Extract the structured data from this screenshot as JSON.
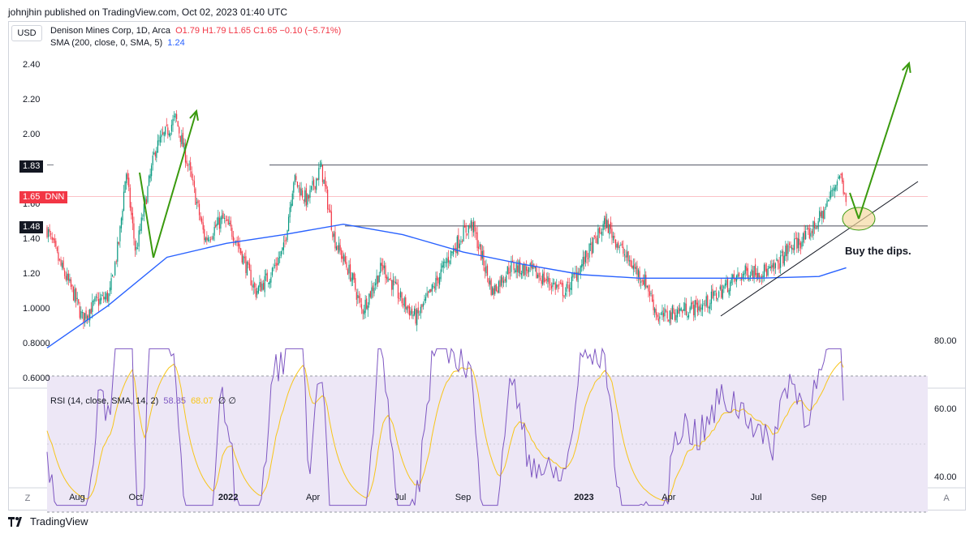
{
  "header": {
    "published": "johnjhin published on TradingView.com, Oct 02, 2023 01:40 UTC",
    "currency_button": "USD",
    "symbol_line": "Denison Mines Corp, 1D, Arca",
    "ohlc": "O1.79 H1.79 L1.65 C1.65 −0.10 (−5.71%)",
    "sma_label": "SMA (200, close, 0, SMA, 5)",
    "sma_value": "1.24",
    "rsi_label": "RSI (14, close, SMA, 14, 2)",
    "rsi_value": "58.85",
    "rsi_sma_value": "68.07",
    "rsi_extra": "∅  ∅"
  },
  "price_axis": {
    "ticks": [
      "2.40",
      "2.20",
      "2.00",
      "1.80",
      "1.60",
      "1.40",
      "1.20",
      "1.0000",
      "0.8000",
      "0.6000"
    ],
    "tag_high": "1.83",
    "tag_last": "1.65",
    "tag_symbol": "DNN",
    "tag_low": "1.48"
  },
  "rsi_axis": {
    "ticks": [
      "80.00",
      "60.00",
      "40.00"
    ]
  },
  "time_axis": {
    "labels": [
      "Aug",
      "Oct",
      "2022",
      "Apr",
      "Jul",
      "Sep",
      "2023",
      "Apr",
      "Jul",
      "Sep"
    ],
    "bold": [
      false,
      false,
      true,
      false,
      false,
      false,
      true,
      false,
      false,
      false
    ]
  },
  "corner_left": "Z",
  "corner_right": "A",
  "annotation": "Buy the dips.",
  "brand": "TradingView",
  "colors": {
    "up": "#089981",
    "down": "#f23645",
    "sma": "#2962ff",
    "rsi": "#7e57c2",
    "rsi_sma": "#f7c51a",
    "arrow": "#3a9a0e",
    "band": "#ede7f6"
  },
  "chart_data": {
    "type": "candlestick",
    "symbol": "DNN",
    "interval": "1D",
    "price_range": [
      0.56,
      2.5
    ],
    "close_path": [
      {
        "x": "2021-07-01",
        "y": 1.46
      },
      {
        "x": "2021-07-15",
        "y": 1.25
      },
      {
        "x": "2021-07-29",
        "y": 1.08
      },
      {
        "x": "2021-08-06",
        "y": 0.95
      },
      {
        "x": "2021-08-20",
        "y": 1.04
      },
      {
        "x": "2021-09-03",
        "y": 1.08
      },
      {
        "x": "2021-09-13",
        "y": 1.4
      },
      {
        "x": "2021-09-20",
        "y": 1.8
      },
      {
        "x": "2021-09-30",
        "y": 1.32
      },
      {
        "x": "2021-10-20",
        "y": 1.92
      },
      {
        "x": "2021-11-10",
        "y": 2.1
      },
      {
        "x": "2021-11-24",
        "y": 1.8
      },
      {
        "x": "2021-12-10",
        "y": 1.4
      },
      {
        "x": "2021-12-28",
        "y": 1.52
      },
      {
        "x": "2022-01-10",
        "y": 1.42
      },
      {
        "x": "2022-01-31",
        "y": 1.1
      },
      {
        "x": "2022-02-15",
        "y": 1.2
      },
      {
        "x": "2022-03-01",
        "y": 1.35
      },
      {
        "x": "2022-03-11",
        "y": 1.75
      },
      {
        "x": "2022-03-25",
        "y": 1.62
      },
      {
        "x": "2022-04-08",
        "y": 1.82
      },
      {
        "x": "2022-04-22",
        "y": 1.4
      },
      {
        "x": "2022-05-10",
        "y": 1.18
      },
      {
        "x": "2022-05-20",
        "y": 0.99
      },
      {
        "x": "2022-06-10",
        "y": 1.25
      },
      {
        "x": "2022-06-30",
        "y": 1.05
      },
      {
        "x": "2022-07-15",
        "y": 0.95
      },
      {
        "x": "2022-08-01",
        "y": 1.12
      },
      {
        "x": "2022-08-15",
        "y": 1.28
      },
      {
        "x": "2022-09-01",
        "y": 1.44
      },
      {
        "x": "2022-09-10",
        "y": 1.49
      },
      {
        "x": "2022-10-01",
        "y": 1.1
      },
      {
        "x": "2022-10-20",
        "y": 1.25
      },
      {
        "x": "2022-11-10",
        "y": 1.22
      },
      {
        "x": "2022-12-15",
        "y": 1.1
      },
      {
        "x": "2023-01-05",
        "y": 1.3
      },
      {
        "x": "2023-01-25",
        "y": 1.5
      },
      {
        "x": "2023-02-15",
        "y": 1.3
      },
      {
        "x": "2023-03-08",
        "y": 1.15
      },
      {
        "x": "2023-03-20",
        "y": 0.95
      },
      {
        "x": "2023-04-15",
        "y": 1.0
      },
      {
        "x": "2023-05-05",
        "y": 1.02
      },
      {
        "x": "2023-06-01",
        "y": 1.15
      },
      {
        "x": "2023-06-20",
        "y": 1.22
      },
      {
        "x": "2023-07-15",
        "y": 1.22
      },
      {
        "x": "2023-08-01",
        "y": 1.35
      },
      {
        "x": "2023-08-20",
        "y": 1.42
      },
      {
        "x": "2023-09-05",
        "y": 1.55
      },
      {
        "x": "2023-09-22",
        "y": 1.78
      },
      {
        "x": "2023-09-29",
        "y": 1.65
      }
    ],
    "sma200": [
      {
        "x": "2021-07-01",
        "y": 0.78
      },
      {
        "x": "2021-09-01",
        "y": 1.02
      },
      {
        "x": "2021-11-01",
        "y": 1.3
      },
      {
        "x": "2022-01-01",
        "y": 1.38
      },
      {
        "x": "2022-03-01",
        "y": 1.43
      },
      {
        "x": "2022-05-01",
        "y": 1.49
      },
      {
        "x": "2022-07-01",
        "y": 1.43
      },
      {
        "x": "2022-09-01",
        "y": 1.33
      },
      {
        "x": "2022-11-01",
        "y": 1.26
      },
      {
        "x": "2023-01-01",
        "y": 1.2
      },
      {
        "x": "2023-03-01",
        "y": 1.18
      },
      {
        "x": "2023-05-01",
        "y": 1.18
      },
      {
        "x": "2023-07-01",
        "y": 1.18
      },
      {
        "x": "2023-09-01",
        "y": 1.19
      },
      {
        "x": "2023-09-29",
        "y": 1.24
      }
    ],
    "horizontal_levels": [
      1.83,
      1.48
    ],
    "last_price": 1.65,
    "rsi_range": [
      30,
      82
    ],
    "rsi_band": [
      30,
      70
    ],
    "rsi_last": 58.85,
    "rsi_sma_last": 68.07
  }
}
